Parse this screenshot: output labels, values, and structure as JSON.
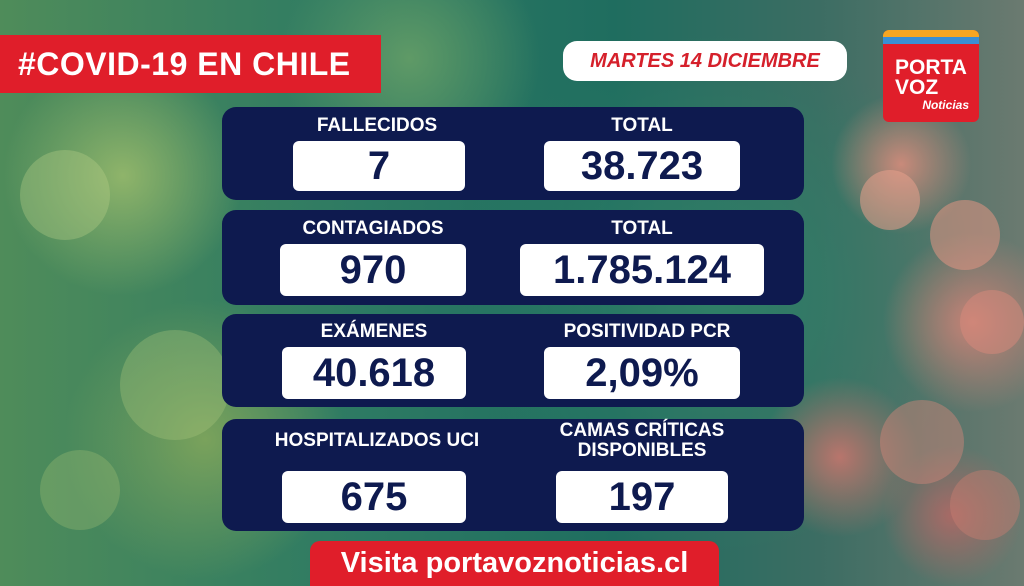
{
  "header": {
    "title": "#COVID-19 EN CHILE",
    "date": "MARTES 14 DICIEMBRE"
  },
  "logo": {
    "line1": "PORTA",
    "line2": "VOZ",
    "line3": "Noticias",
    "colors": {
      "red": "#e01e2a",
      "orange": "#f6a623",
      "blue": "#3a8fd4"
    }
  },
  "stats": {
    "fallecidos": {
      "label": "FALLECIDOS",
      "value": "7"
    },
    "fallecidos_total": {
      "label": "TOTAL",
      "value": "38.723"
    },
    "contagiados": {
      "label": "CONTAGIADOS",
      "value": "970"
    },
    "contagiados_total": {
      "label": "TOTAL",
      "value": "1.785.124"
    },
    "examenes": {
      "label": "EXÁMENES",
      "value": "40.618"
    },
    "positividad": {
      "label": "POSITIVIDAD PCR",
      "value": "2,09%"
    },
    "hospitalizados": {
      "label": "HOSPITALIZADOS UCI",
      "value": "675"
    },
    "camas": {
      "label_line1": "CAMAS CRÍTICAS",
      "label_line2": "DISPONIBLES",
      "value": "197"
    }
  },
  "footer": {
    "text": "Visita portavoznoticias.cl"
  },
  "colors": {
    "panel": "#0e1a4f",
    "accent_red": "#e01e2a"
  }
}
